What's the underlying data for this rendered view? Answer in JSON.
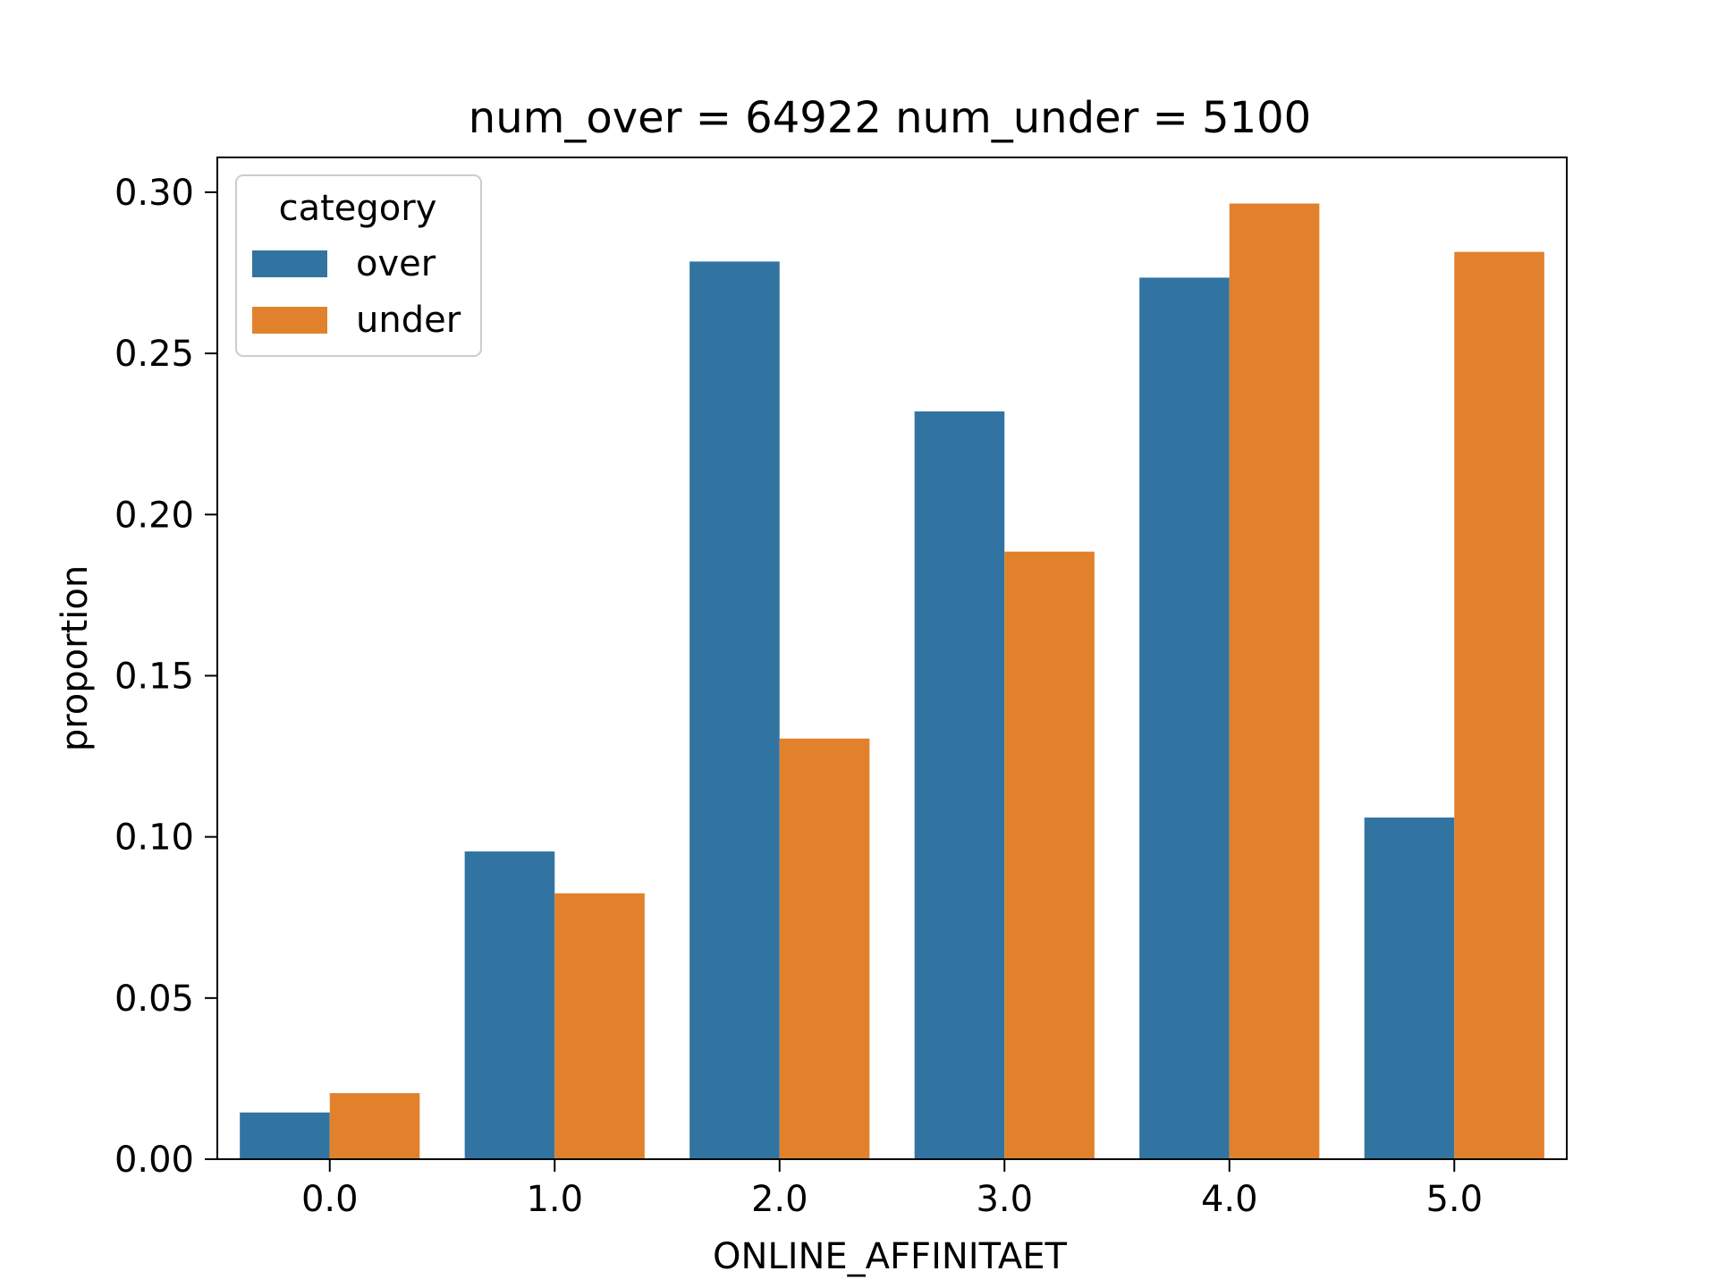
{
  "chart_data": {
    "type": "bar",
    "title": "num_over = 64922  num_under = 5100",
    "xlabel": "ONLINE_AFFINITAET",
    "ylabel": "proportion",
    "categories": [
      "0.0",
      "1.0",
      "2.0",
      "3.0",
      "4.0",
      "5.0"
    ],
    "series": [
      {
        "name": "over",
        "color": "#3274a1",
        "values": [
          0.0145,
          0.0955,
          0.2785,
          0.232,
          0.2735,
          0.106
        ]
      },
      {
        "name": "under",
        "color": "#e1812c",
        "values": [
          0.0205,
          0.0825,
          0.1305,
          0.1885,
          0.2965,
          0.2815
        ]
      }
    ],
    "ylim": [
      0,
      0.3108
    ],
    "yticks": [
      "0.00",
      "0.05",
      "0.10",
      "0.15",
      "0.20",
      "0.25",
      "0.30"
    ],
    "legend": {
      "title": "category",
      "placement": "top-left"
    },
    "grid": false
  }
}
